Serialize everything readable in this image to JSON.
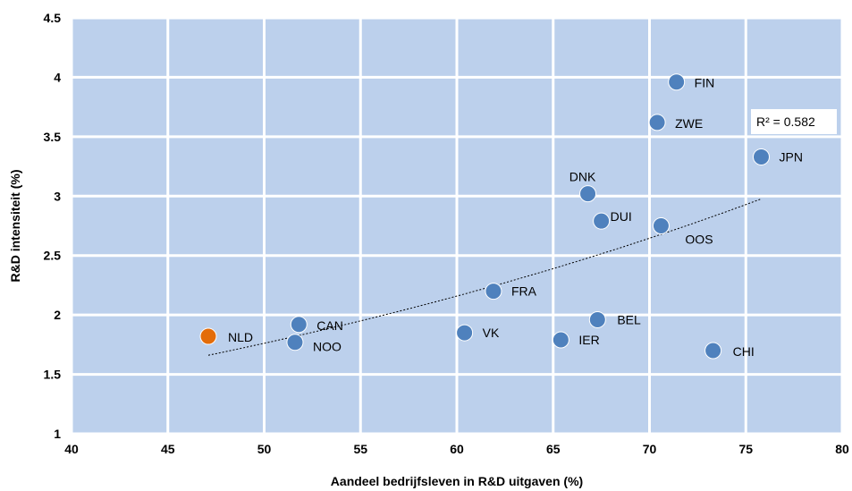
{
  "chart_data": {
    "type": "scatter",
    "xlabel": "Aandeel bedrijfsleven in R&D uitgaven (%)",
    "ylabel": "R&D intensiteit (%)",
    "xlim": [
      40,
      80
    ],
    "ylim": [
      1,
      4.5
    ],
    "x_ticks": [
      "40",
      "45",
      "50",
      "55",
      "60",
      "65",
      "70",
      "75",
      "80"
    ],
    "y_ticks": [
      "1",
      "1.5",
      "2",
      "2.5",
      "3",
      "3.5",
      "4",
      "4.5"
    ],
    "grid": true,
    "plot_background": "#bcd0ec",
    "grid_color": "#ffffff",
    "point_color": "#4f81bd",
    "highlight_color": "#e36c0a",
    "points": [
      {
        "label": "NLD",
        "x": 47.1,
        "y": 1.82,
        "highlight": true
      },
      {
        "label": "CAN",
        "x": 51.8,
        "y": 1.92
      },
      {
        "label": "NOO",
        "x": 51.6,
        "y": 1.77
      },
      {
        "label": "VK",
        "x": 60.4,
        "y": 1.85
      },
      {
        "label": "FRA",
        "x": 61.9,
        "y": 2.2
      },
      {
        "label": "IER",
        "x": 65.4,
        "y": 1.79
      },
      {
        "label": "BEL",
        "x": 67.3,
        "y": 1.96
      },
      {
        "label": "DNK",
        "x": 66.8,
        "y": 3.02
      },
      {
        "label": "DUI",
        "x": 67.5,
        "y": 2.79
      },
      {
        "label": "OOS",
        "x": 70.6,
        "y": 2.75
      },
      {
        "label": "ZWE",
        "x": 70.4,
        "y": 3.62
      },
      {
        "label": "FIN",
        "x": 71.4,
        "y": 3.96
      },
      {
        "label": "JPN",
        "x": 75.8,
        "y": 3.33
      },
      {
        "label": "CHI",
        "x": 73.3,
        "y": 1.7
      }
    ],
    "trendline": {
      "style": "dotted",
      "x_range": [
        47.1,
        75.8
      ],
      "r_squared_label": "R² = 0.582"
    }
  }
}
